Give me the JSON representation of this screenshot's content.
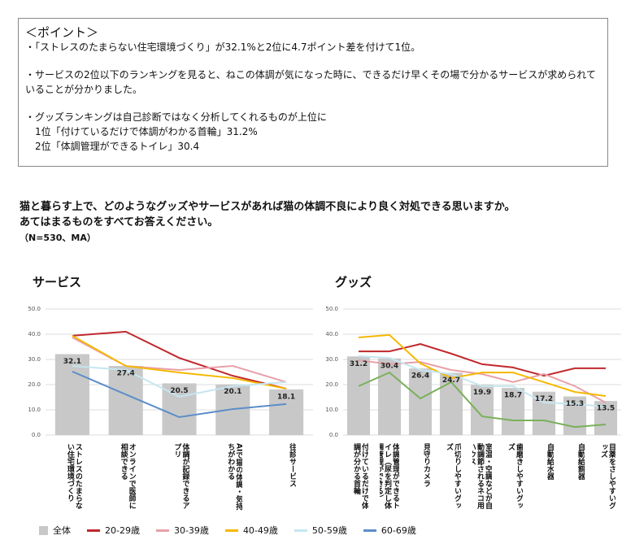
{
  "points": {
    "heading": "＜ポイント＞",
    "items": [
      "・「ストレスのたまらない住宅環境づくり」が32.1%と2位に4.7ポイント差を付けて1位。",
      "・サービスの2位以下のランキングを見ると、ねこの体調が気になった時に、できるだけ早くその場で分かるサービスが求められていることが分かりました。",
      "・グッズランキングは自己診断ではなく分析してくれるものが上位に"
    ],
    "sub_items": [
      "1位「付けているだけで体調がわかる首輪」31.2%",
      "2位「体調管理ができるトイレ」30.4"
    ]
  },
  "question": {
    "lines": [
      "猫と暮らす上で、どのようなグッズやサービスがあれば猫の体調不良により良く対処できる思いますか。",
      "あてはまるものをすべてお答えください。"
    ],
    "note": "（N=530、MA）"
  },
  "chart_data": [
    {
      "type": "combo",
      "title": "サービス",
      "categories": [
        "ストレスのたまらない住宅環境づくり",
        "オンラインで医師に相談できる",
        "体調が記録できるアプリ",
        "AIで猫の体調・気持ちがわかる",
        "往診サービス"
      ],
      "series": [
        {
          "name": "全体",
          "color": "#c8c8c8",
          "values": [
            32.1,
            27.4,
            20.5,
            20.1,
            18.1
          ]
        },
        {
          "name": "20-29歳",
          "color": "#c0282d",
          "values": [
            39.4,
            41.0,
            30.6,
            23.5,
            18.4
          ]
        },
        {
          "name": "30-39歳",
          "color": "#e8a0a8",
          "values": [
            38.7,
            27.4,
            25.8,
            27.4,
            21.0
          ]
        },
        {
          "name": "40-49歳",
          "color": "#f5b800",
          "values": [
            39.4,
            27.4,
            24.8,
            22.6,
            18.4
          ]
        },
        {
          "name": "50-59歳",
          "color": "#c6e6f0",
          "values": [
            27.4,
            25.8,
            15.2,
            19.4,
            21.0
          ]
        },
        {
          "name": "60-69歳",
          "color": "#5b8ec8",
          "values": [
            25.2,
            16.1,
            7.1,
            10.3,
            12.3
          ]
        }
      ],
      "ylim": [
        0,
        50
      ],
      "yticks": [
        {
          "value": 0,
          "label": "0.0"
        },
        {
          "value": 10,
          "label": "10.0"
        },
        {
          "value": 20,
          "label": "20.0"
        },
        {
          "value": 30,
          "label": "30.0"
        },
        {
          "value": 40,
          "label": "40.0"
        },
        {
          "value": 50,
          "label": "50.0"
        }
      ],
      "grid": true
    },
    {
      "type": "combo",
      "title": "グッズ",
      "categories": [
        "付けているだけで体調が分かる首輪",
        "体調管理ができるトイレ（尿を判定し体調管理ができる）",
        "見守りカメラ",
        "爪切りしやすいグッズ",
        "室温・空調などが自動調節されるネコ用ハウス",
        "歯磨きしやすいグッズ",
        "自動給水器",
        "自動給餌器",
        "目薬をさしやすいグッズ"
      ],
      "series": [
        {
          "color": "#c8c8c8",
          "values": [
            31.2,
            30.4,
            26.4,
            24.7,
            19.9,
            18.7,
            17.2,
            15.3,
            13.5
          ]
        },
        {
          "color": "#c0282d",
          "values": [
            33.2,
            33.2,
            36.1,
            32.3,
            28.1,
            26.8,
            23.5,
            26.5,
            26.5
          ]
        },
        {
          "color": "#e8a0a8",
          "values": [
            29.7,
            28.1,
            29.0,
            25.8,
            24.2,
            21.0,
            24.2,
            19.4,
            12.9
          ]
        },
        {
          "color": "#f5b800",
          "values": [
            38.7,
            39.7,
            28.4,
            22.6,
            24.8,
            24.8,
            21.0,
            17.1,
            15.5
          ]
        },
        {
          "color": "#c6e6f0",
          "values": [
            31.3,
            30.6,
            25.8,
            24.2,
            19.4,
            19.4,
            12.9,
            12.3,
            11.3
          ]
        },
        {
          "color": "#7ab05a",
          "values": [
            19.4,
            24.8,
            14.5,
            21.0,
            7.4,
            5.8,
            5.8,
            3.2,
            4.2
          ]
        }
      ],
      "ylim": [
        0,
        50
      ],
      "yticks": [
        {
          "value": 0,
          "label": "0.0"
        },
        {
          "value": 10,
          "label": "10.0"
        },
        {
          "value": 20,
          "label": "20.0"
        },
        {
          "value": 30,
          "label": "30.0"
        },
        {
          "value": 40,
          "label": "40.0"
        },
        {
          "value": 50,
          "label": "50.0"
        }
      ],
      "grid": true
    }
  ]
}
